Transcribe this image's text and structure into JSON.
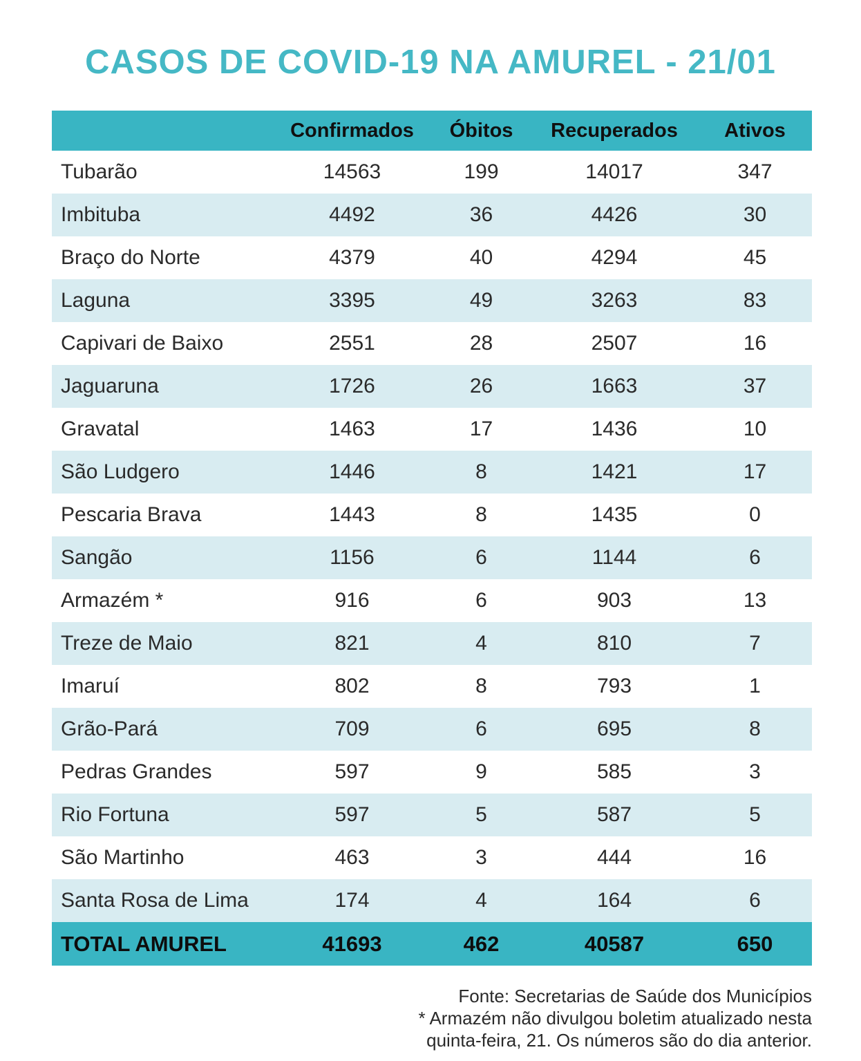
{
  "title": "CASOS DE COVID-19 NA AMUREL - 21/01",
  "colors": {
    "teal_band": "#39b5c3",
    "light_row": "#d8ecf1",
    "title_text": "#45b8c5",
    "body_text": "#2a2a2a"
  },
  "chart_data": {
    "type": "table",
    "title": "CASOS DE COVID-19 NA AMUREL - 21/01",
    "column_headers": [
      "",
      "Confirmados",
      "Óbitos",
      "Recuperados",
      "Ativos"
    ],
    "rows": [
      {
        "name": "Tubarão",
        "values": [
          14563,
          199,
          14017,
          347
        ]
      },
      {
        "name": "Imbituba",
        "values": [
          4492,
          36,
          4426,
          30
        ]
      },
      {
        "name": "Braço do Norte",
        "values": [
          4379,
          40,
          4294,
          45
        ]
      },
      {
        "name": "Laguna",
        "values": [
          3395,
          49,
          3263,
          83
        ]
      },
      {
        "name": "Capivari de Baixo",
        "values": [
          2551,
          28,
          2507,
          16
        ]
      },
      {
        "name": "Jaguaruna",
        "values": [
          1726,
          26,
          1663,
          37
        ]
      },
      {
        "name": "Gravatal",
        "values": [
          1463,
          17,
          1436,
          10
        ]
      },
      {
        "name": "São Ludgero",
        "values": [
          1446,
          8,
          1421,
          17
        ]
      },
      {
        "name": "Pescaria Brava",
        "values": [
          1443,
          8,
          1435,
          0
        ]
      },
      {
        "name": "Sangão",
        "values": [
          1156,
          6,
          1144,
          6
        ]
      },
      {
        "name": "Armazém *",
        "values": [
          916,
          6,
          903,
          13
        ]
      },
      {
        "name": "Treze de Maio",
        "values": [
          821,
          4,
          810,
          7
        ]
      },
      {
        "name": "Imaruí",
        "values": [
          802,
          8,
          793,
          1
        ]
      },
      {
        "name": "Grão-Pará",
        "values": [
          709,
          6,
          695,
          8
        ]
      },
      {
        "name": "Pedras Grandes",
        "values": [
          597,
          9,
          585,
          3
        ]
      },
      {
        "name": "Rio Fortuna",
        "values": [
          597,
          5,
          587,
          5
        ]
      },
      {
        "name": "São Martinho",
        "values": [
          463,
          3,
          444,
          16
        ]
      },
      {
        "name": "Santa Rosa de Lima",
        "values": [
          174,
          4,
          164,
          6
        ]
      }
    ],
    "total": {
      "name": "TOTAL AMUREL",
      "values": [
        41693,
        462,
        40587,
        650
      ]
    },
    "footnotes": [
      "Fonte: Secretarias de Saúde dos Municípios",
      "* Armazém não divulgou boletim atualizado nesta",
      "quinta-feira, 21. Os números são do dia anterior."
    ]
  }
}
